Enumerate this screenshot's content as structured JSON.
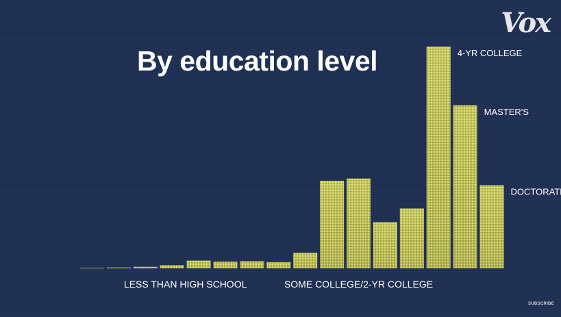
{
  "brand": {
    "logo_text": "Vox",
    "subscribe_text": "SUBSCRIBE"
  },
  "colors": {
    "background": "#1f2f52",
    "bar": "#d8d86a",
    "bar_dark": "#8f9240"
  },
  "chart_data": {
    "type": "bar",
    "title": "By education level",
    "xlabel": "",
    "ylabel": "",
    "ylim": [
      0,
      100
    ],
    "grid": false,
    "legend": "none",
    "categories": [
      "",
      "",
      "",
      "",
      "",
      "",
      "",
      "",
      "",
      "",
      "",
      "",
      "",
      "",
      "",
      "",
      ""
    ],
    "values": [
      0.3,
      0.4,
      0.7,
      1.5,
      3.5,
      3.0,
      3.2,
      2.8,
      7.0,
      39.5,
      40.5,
      20.8,
      27.0,
      100,
      73.5,
      37.5,
      0
    ],
    "bar_labels": [
      {
        "index": 13,
        "text": "4-YR COLLEGE"
      },
      {
        "index": 14,
        "text": "MASTER'S"
      },
      {
        "index": 15,
        "text": "DOCTORATE"
      }
    ],
    "group_labels": [
      {
        "text": "LESS THAN HIGH SCHOOL",
        "from": 0,
        "to": 7
      },
      {
        "text": "SOME COLLEGE/2-YR COLLEGE",
        "from": 8,
        "to": 12
      }
    ]
  }
}
